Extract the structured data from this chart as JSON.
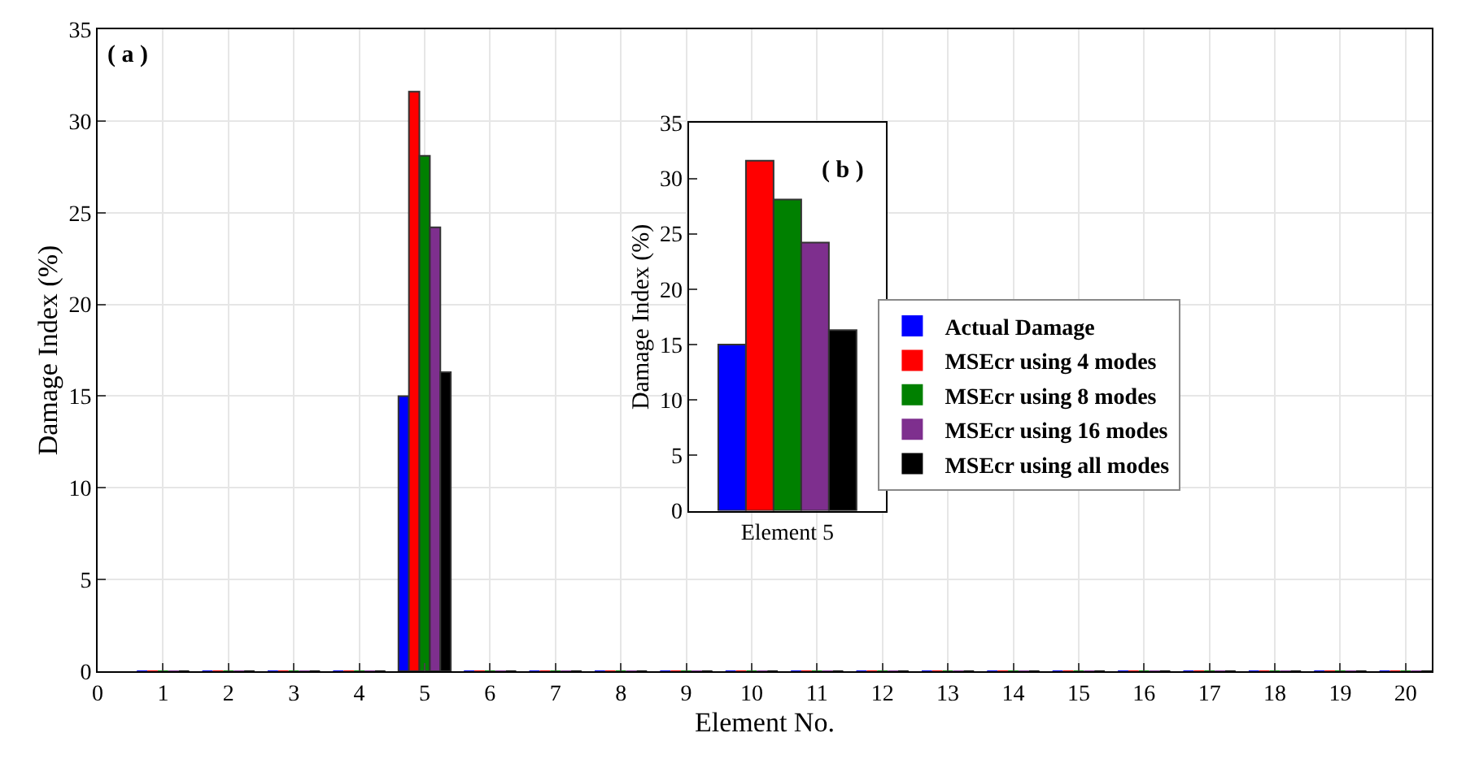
{
  "chart_data": [
    {
      "type": "bar",
      "xlabel": "Element No.",
      "ylabel": "Damage Index (%)",
      "x": [
        1,
        2,
        3,
        4,
        5,
        6,
        7,
        8,
        9,
        10,
        11,
        12,
        13,
        14,
        15,
        16,
        17,
        18,
        19,
        20
      ],
      "series": [
        {
          "name": "Actual Damage",
          "color": "#0000ff",
          "values": [
            0,
            0,
            0,
            0,
            15,
            0,
            0,
            0,
            0,
            0,
            0,
            0,
            0,
            0,
            0,
            0,
            0,
            0,
            0,
            0
          ]
        },
        {
          "name": "MSEcr using 4 modes",
          "color": "#ff0000",
          "values": [
            0,
            0,
            0,
            0,
            31.6,
            0,
            0,
            0,
            0,
            0,
            0,
            0,
            0,
            0,
            0,
            0,
            0,
            0,
            0,
            0
          ]
        },
        {
          "name": "MSEcr using 8 modes",
          "color": "#008000",
          "values": [
            0,
            0,
            0,
            0,
            28.1,
            0,
            0,
            0,
            0,
            0,
            0,
            0,
            0,
            0,
            0,
            0,
            0,
            0,
            0,
            0
          ]
        },
        {
          "name": "MSEcr using 16 modes",
          "color": "#7e2f8e",
          "values": [
            0,
            0,
            0,
            0,
            24.2,
            0,
            0,
            0,
            0,
            0,
            0,
            0,
            0,
            0,
            0,
            0,
            0,
            0,
            0,
            0
          ]
        },
        {
          "name": "MSEcr using all modes",
          "color": "#000000",
          "values": [
            0,
            0,
            0,
            0,
            16.3,
            0,
            0,
            0,
            0,
            0,
            0,
            0,
            0,
            0,
            0,
            0,
            0,
            0,
            0,
            0
          ]
        }
      ],
      "xlim": [
        0,
        20.4
      ],
      "xticks": [
        0,
        1,
        2,
        3,
        4,
        5,
        6,
        7,
        8,
        9,
        10,
        11,
        12,
        13,
        14,
        15,
        16,
        17,
        18,
        19,
        20
      ],
      "ylim": [
        0,
        35
      ],
      "yticks": [
        0,
        5,
        10,
        15,
        20,
        25,
        30,
        35
      ],
      "grid": true,
      "legend": "right",
      "annotations": [
        "( a )"
      ]
    },
    {
      "type": "bar",
      "ylabel": "Damage Index (%)",
      "categories": [
        "Element 5"
      ],
      "series": [
        {
          "color": "#0000ff",
          "values": [
            15
          ]
        },
        {
          "color": "#ff0000",
          "values": [
            31.6
          ]
        },
        {
          "color": "#008000",
          "values": [
            28.1
          ]
        },
        {
          "color": "#7e2f8e",
          "values": [
            24.2
          ]
        },
        {
          "color": "#000000",
          "values": [
            16.3
          ]
        }
      ],
      "ylim": [
        0,
        35
      ],
      "yticks": [
        0,
        5,
        10,
        15,
        20,
        25,
        30,
        35
      ],
      "annotations": [
        "( b )"
      ]
    }
  ]
}
